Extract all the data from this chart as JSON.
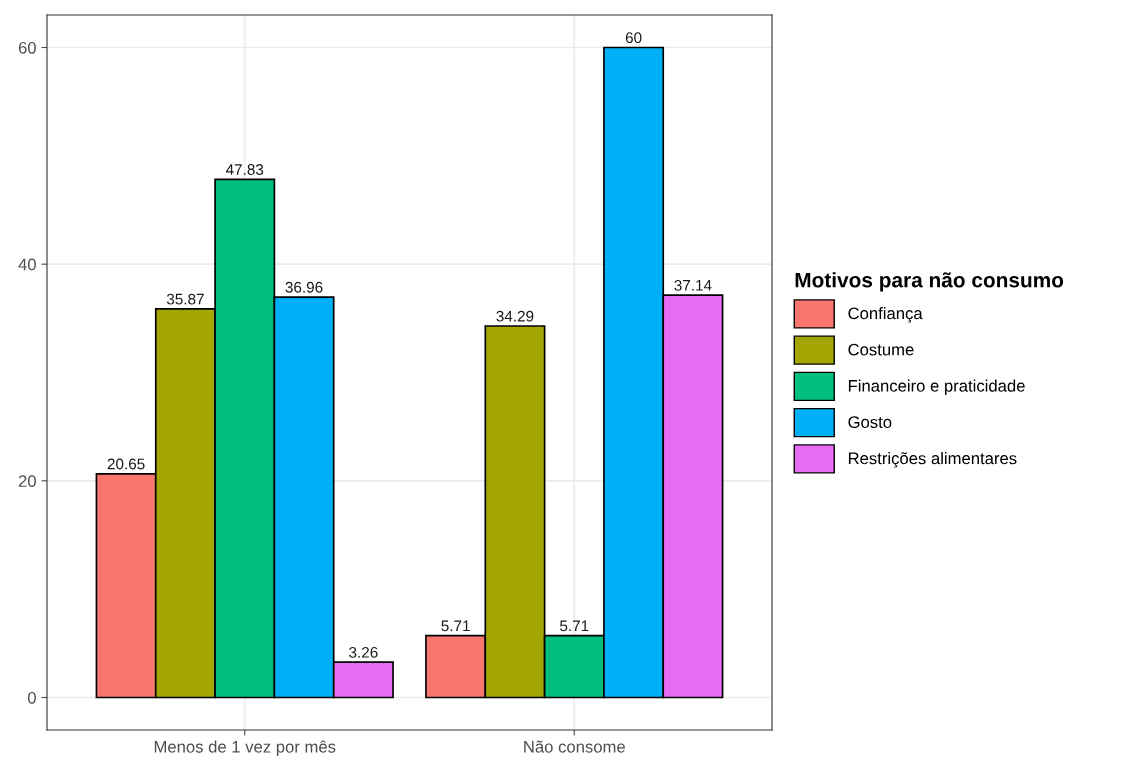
{
  "chart_data": {
    "type": "bar",
    "categories": [
      "Menos de 1 vez por mês",
      "Não consome"
    ],
    "series": [
      {
        "name": "Confiança",
        "color": "#f8766d",
        "values": [
          20.65,
          5.71
        ]
      },
      {
        "name": "Costume",
        "color": "#a3a500",
        "values": [
          35.87,
          34.29
        ]
      },
      {
        "name": "Financeiro e praticidade",
        "color": "#00bf7d",
        "values": [
          47.83,
          5.71
        ]
      },
      {
        "name": "Gosto",
        "color": "#00b0f6",
        "values": [
          36.96,
          60
        ]
      },
      {
        "name": "Restrições alimentares",
        "color": "#e76bf3",
        "values": [
          3.26,
          37.14
        ]
      }
    ],
    "legend_title": "Motivos para não consumo",
    "ylim": [
      -3,
      63
    ],
    "yticks": [
      0,
      20,
      40,
      60
    ],
    "grid": true,
    "legend": "right",
    "data_labels": true
  }
}
